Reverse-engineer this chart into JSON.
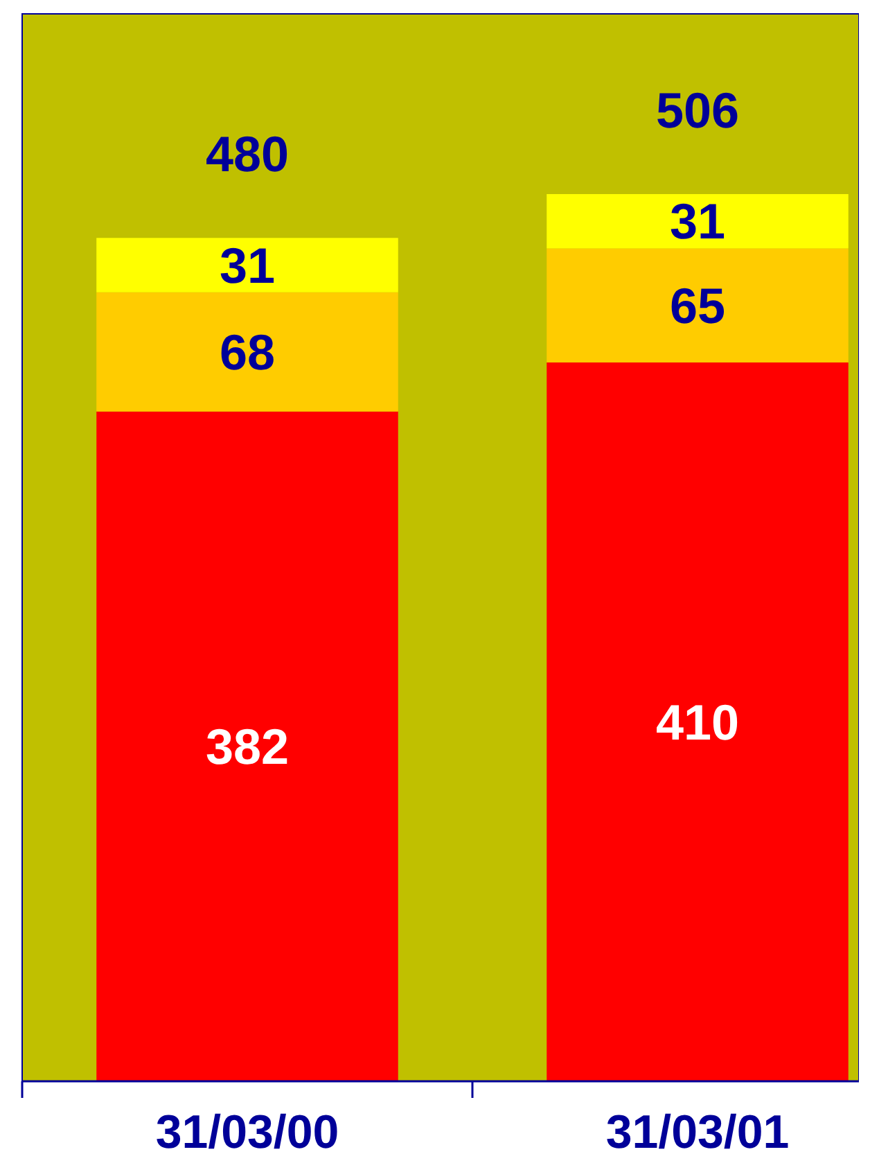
{
  "chart_data": {
    "type": "bar",
    "stacked": true,
    "data_labels": true,
    "categories": [
      "31/03/00",
      "31/03/01"
    ],
    "series": [
      {
        "color": "#ff0000",
        "values": [
          382,
          410
        ]
      },
      {
        "color": "#ffcc00",
        "values": [
          68,
          65
        ]
      },
      {
        "color": "#ffff00",
        "values": [
          31,
          31
        ]
      }
    ],
    "totals": [
      "480",
      "506"
    ]
  }
}
